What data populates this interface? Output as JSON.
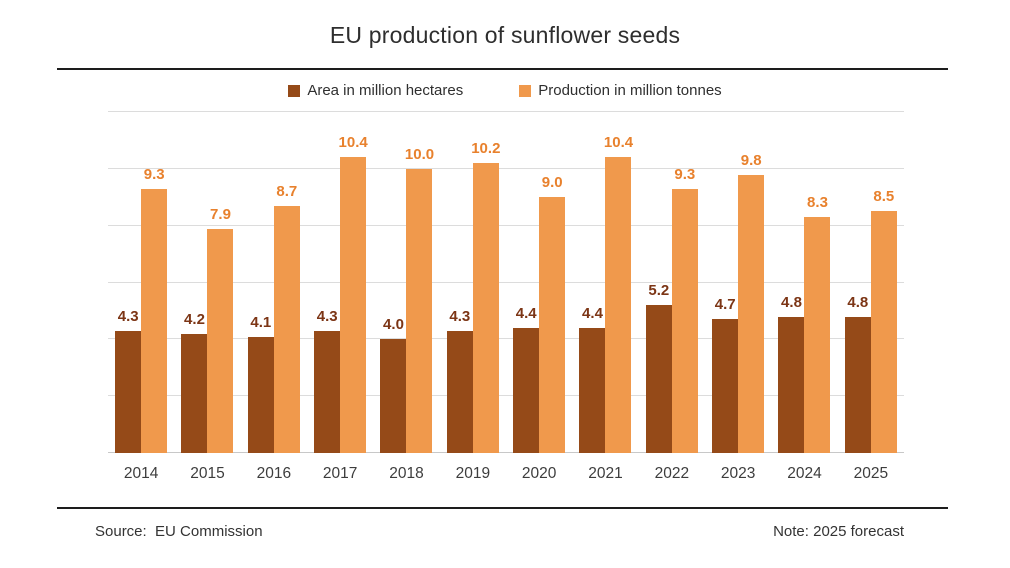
{
  "title": "EU production of sunflower seeds",
  "legend": [
    {
      "label": "Area in million hectares",
      "color": "#954A18"
    },
    {
      "label": "Production in million tonnes",
      "color": "#F0994C"
    }
  ],
  "footer": {
    "source": "Source:  EU Commission",
    "note": "Note: 2025 forecast"
  },
  "colors": {
    "area_bar": "#954A18",
    "area_label": "#7C3515",
    "production_bar": "#F0994C",
    "production_label": "#E8812D",
    "gridline": "#dcdcdc",
    "rule": "#1d1d1d"
  },
  "chart_data": {
    "type": "bar",
    "title": "EU production of sunflower seeds",
    "categories": [
      "2014",
      "2015",
      "2016",
      "2017",
      "2018",
      "2019",
      "2020",
      "2021",
      "2022",
      "2023",
      "2024",
      "2025"
    ],
    "series": [
      {
        "name": "Area in million hectares",
        "values": [
          4.3,
          4.2,
          4.1,
          4.3,
          4.0,
          4.3,
          4.4,
          4.4,
          5.2,
          4.7,
          4.8,
          4.8
        ],
        "color": "#954A18",
        "label_color": "#7C3515"
      },
      {
        "name": "Production in million tonnes",
        "values": [
          9.3,
          7.9,
          8.7,
          10.4,
          10.0,
          10.2,
          9.0,
          10.4,
          9.3,
          9.8,
          8.3,
          8.5
        ],
        "color": "#F0994C",
        "label_color": "#E8812D"
      }
    ],
    "xlabel": "",
    "ylabel": "",
    "ylim": [
      0,
      12
    ],
    "gridline_step": 2,
    "grid": true,
    "y_axis_labels_visible": false,
    "value_labels": true,
    "value_label_decimals": 1,
    "legend_position": "top"
  }
}
